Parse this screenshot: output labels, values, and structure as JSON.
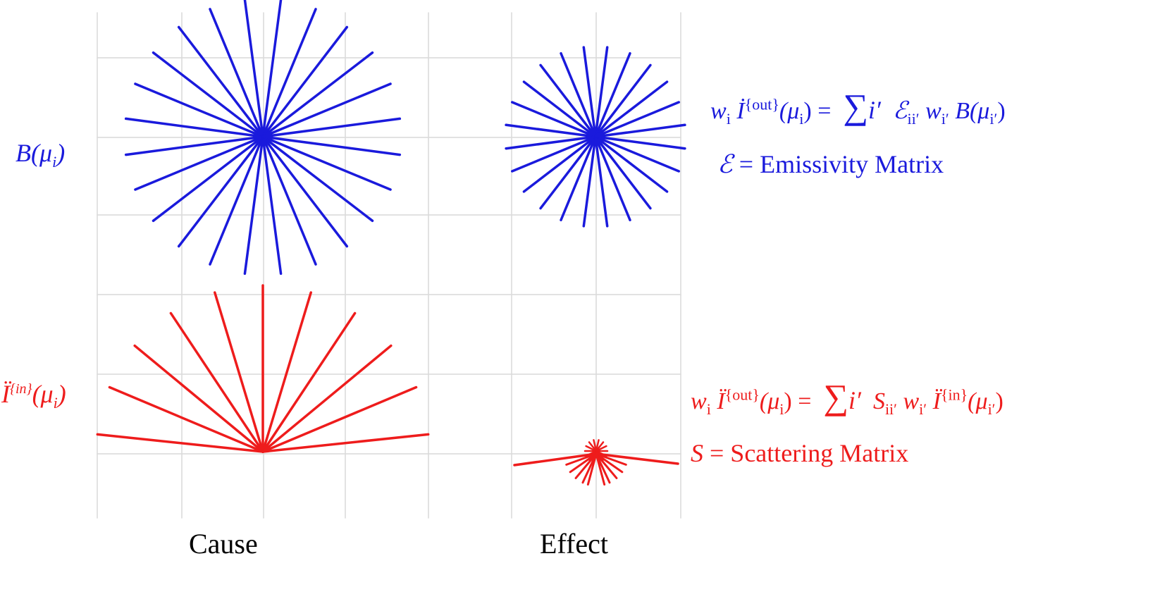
{
  "columns": {
    "cause": "Cause",
    "effect": "Effect"
  },
  "rows": {
    "emission": {
      "symbol": "B",
      "arg": "(μ",
      "arg_sub": "i",
      "arg_close": ")",
      "color": "#1a1adc"
    },
    "scattering": {
      "symbol": "Ï",
      "sup": "{in}",
      "arg": "(μ",
      "arg_sub": "i",
      "arg_close": ")",
      "color": "#ee1c1c"
    }
  },
  "equations": {
    "emission": {
      "w": "w",
      "w_sub": "i",
      "I": "İ",
      "I_sup": "{out}",
      "lhs_arg": "(μ",
      "lhs_arg_sub": "i",
      "lhs_close": ") =",
      "sum": "∑",
      "sum_index": "i′",
      "matrix": "ℰ",
      "matrix_sub": "ii′",
      "w2": "w",
      "w2_sub": "i′",
      "source": "B(μ",
      "source_sub": "i′",
      "source_close": ")"
    },
    "scattering": {
      "w": "w",
      "w_sub": "i",
      "I": "Ï",
      "I_sup": "{out}",
      "lhs_arg": "(μ",
      "lhs_arg_sub": "i",
      "lhs_close": ") =",
      "sum": "∑",
      "sum_index": "i′",
      "matrix": "S",
      "matrix_sub": "ii′",
      "w2": "w",
      "w2_sub": "i′",
      "source": "Ï",
      "source_sup": "{in}",
      "source_arg": "(μ",
      "source_sub": "i′",
      "source_close": ")"
    }
  },
  "definitions": {
    "emissivity": {
      "symbol": "ℰ",
      "text": " = Emissivity Matrix"
    },
    "scattering": {
      "symbol": "S",
      "text": " = Scattering Matrix"
    }
  },
  "colors": {
    "emission": "#1a1adc",
    "scattering": "#ee1c1c",
    "grid": "#d9d9d9"
  }
}
